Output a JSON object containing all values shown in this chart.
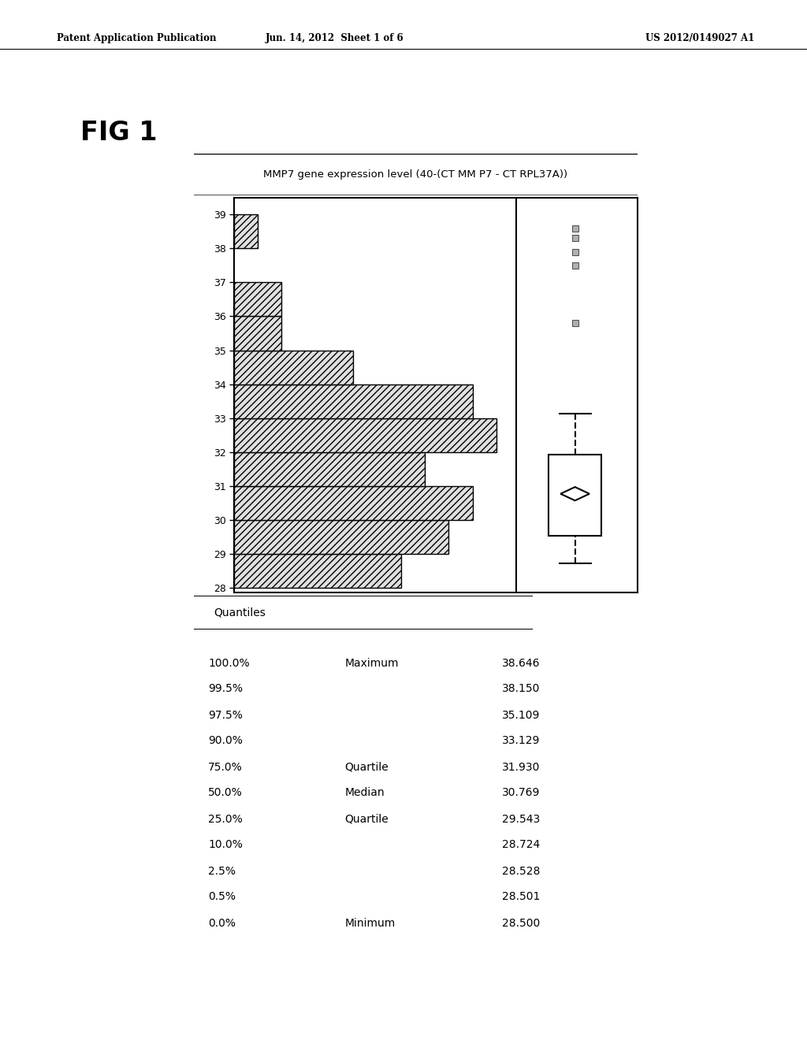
{
  "fig_label": "FIG 1",
  "header_left": "Patent Application Publication",
  "header_mid": "Jun. 14, 2012  Sheet 1 of 6",
  "header_right": "US 2012/0149027 A1",
  "chart_title": "MMP7 gene expression level (40-(CT MM P7 - CT RPL37A))",
  "histogram_bars": [
    {
      "y": 28,
      "count": 7
    },
    {
      "y": 29,
      "count": 9
    },
    {
      "y": 30,
      "count": 10
    },
    {
      "y": 31,
      "count": 8
    },
    {
      "y": 32,
      "count": 11
    },
    {
      "y": 33,
      "count": 10
    },
    {
      "y": 34,
      "count": 5
    },
    {
      "y": 35,
      "count": 2
    },
    {
      "y": 36,
      "count": 2
    },
    {
      "y": 37,
      "count": 0
    },
    {
      "y": 38,
      "count": 1
    },
    {
      "y": 39,
      "count": 0
    }
  ],
  "boxplot": {
    "min": 28.5,
    "q10": 28.724,
    "q25": 29.543,
    "median": 30.769,
    "q75": 31.93,
    "q90": 33.129,
    "max": 38.646,
    "outliers": [
      35.8,
      37.5,
      37.9,
      38.3,
      38.6
    ]
  },
  "quantiles": [
    {
      "pct": "100.0%",
      "label": "Maximum",
      "value": "38.646"
    },
    {
      "pct": "99.5%",
      "label": "",
      "value": "38.150"
    },
    {
      "pct": "97.5%",
      "label": "",
      "value": "35.109"
    },
    {
      "pct": "90.0%",
      "label": "",
      "value": "33.129"
    },
    {
      "pct": "75.0%",
      "label": "Quartile",
      "value": "31.930"
    },
    {
      "pct": "50.0%",
      "label": "Median",
      "value": "30.769"
    },
    {
      "pct": "25.0%",
      "label": "Quartile",
      "value": "29.543"
    },
    {
      "pct": "10.0%",
      "label": "",
      "value": "28.724"
    },
    {
      "pct": "2.5%",
      "label": "",
      "value": "28.528"
    },
    {
      "pct": "0.5%",
      "label": "",
      "value": "28.501"
    },
    {
      "pct": "0.0%",
      "label": "Minimum",
      "value": "28.500"
    }
  ],
  "bg_color": "#ffffff",
  "hatch_pattern": "////",
  "bar_edgecolor": "#000000"
}
